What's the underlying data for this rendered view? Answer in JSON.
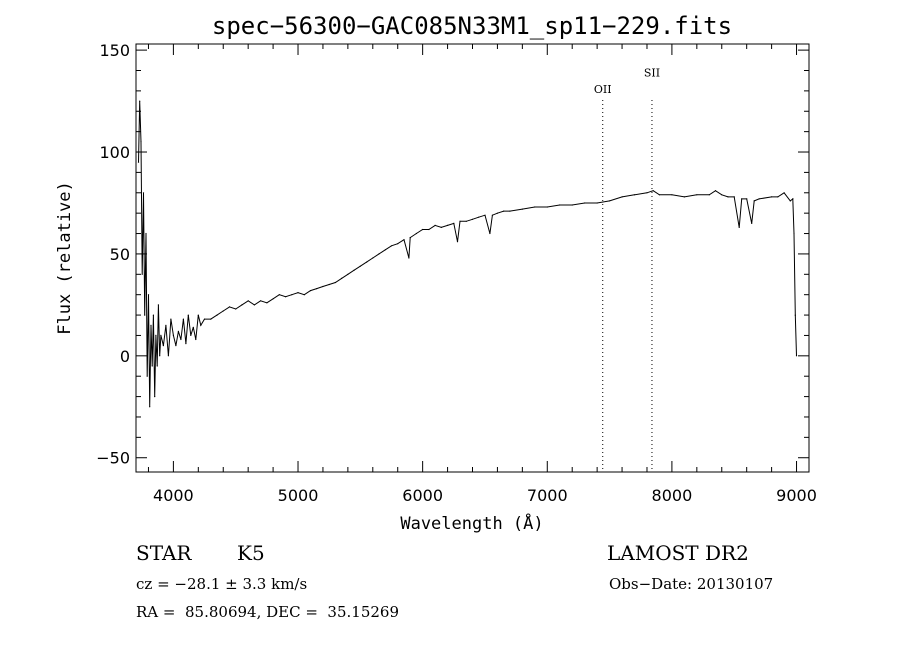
{
  "chart_data": {
    "type": "line",
    "title": "spec−56300−GAC085N33M1_sp11−229.fits",
    "xlabel": "Wavelength (Å)",
    "ylabel": "Flux (relative)",
    "xlim": [
      3700,
      9100
    ],
    "ylim": [
      -57,
      153
    ],
    "xticks": [
      4000,
      5000,
      6000,
      7000,
      8000,
      9000
    ],
    "yticks": [
      -50,
      0,
      50,
      100,
      150
    ],
    "ytick_labels": [
      "−50",
      "0",
      "50",
      "100",
      "150"
    ],
    "x_minor_step": 200,
    "y_minor_step": 10,
    "grid": false,
    "series": [
      {
        "x": [
          3720,
          3730,
          3740,
          3750,
          3760,
          3770,
          3780,
          3790,
          3800,
          3810,
          3820,
          3830,
          3840,
          3850,
          3860,
          3870,
          3880,
          3890,
          3900,
          3920,
          3940,
          3960,
          3980,
          4000,
          4020,
          4040,
          4060,
          4080,
          4100,
          4120,
          4140,
          4160,
          4180,
          4200,
          4220,
          4250,
          4300,
          4350,
          4400,
          4450,
          4500,
          4550,
          4600,
          4650,
          4700,
          4750,
          4800,
          4850,
          4900,
          4950,
          5000,
          5050,
          5100,
          5150,
          5200,
          5250,
          5300,
          5350,
          5400,
          5450,
          5500,
          5550,
          5600,
          5650,
          5700,
          5750,
          5800,
          5850,
          5890,
          5900,
          5950,
          6000,
          6050,
          6100,
          6150,
          6200,
          6250,
          6280,
          6300,
          6350,
          6400,
          6450,
          6500,
          6540,
          6560,
          6600,
          6650,
          6700,
          6800,
          6900,
          7000,
          7100,
          7200,
          7300,
          7400,
          7500,
          7600,
          7700,
          7800,
          7850,
          7900,
          8000,
          8100,
          8200,
          8300,
          8350,
          8400,
          8450,
          8500,
          8540,
          8560,
          8600,
          8640,
          8660,
          8700,
          8800,
          8850,
          8900,
          8950,
          8970,
          8980,
          8990,
          9000
        ],
        "values": [
          95,
          125,
          105,
          40,
          80,
          20,
          60,
          -10,
          30,
          -25,
          15,
          -5,
          20,
          -20,
          10,
          -5,
          25,
          0,
          10,
          5,
          15,
          0,
          18,
          10,
          5,
          12,
          8,
          18,
          6,
          20,
          10,
          14,
          8,
          20,
          15,
          18,
          18,
          20,
          22,
          24,
          23,
          25,
          27,
          25,
          27,
          26,
          28,
          30,
          29,
          30,
          31,
          30,
          32,
          33,
          34,
          35,
          36,
          38,
          40,
          42,
          44,
          46,
          48,
          50,
          52,
          54,
          55,
          57,
          48,
          58,
          60,
          62,
          62,
          64,
          63,
          64,
          65,
          56,
          66,
          66,
          67,
          68,
          69,
          60,
          69,
          70,
          71,
          71,
          72,
          73,
          73,
          74,
          74,
          75,
          75,
          76,
          78,
          79,
          80,
          81,
          79,
          79,
          78,
          79,
          79,
          81,
          79,
          78,
          78,
          63,
          77,
          77,
          65,
          76,
          77,
          78,
          78,
          80,
          76,
          77,
          60,
          20,
          0
        ]
      }
    ],
    "annotations": [
      {
        "label": "OII",
        "x": 7445,
        "text_y": 129
      },
      {
        "label": "SII",
        "x": 7840,
        "text_y": 137
      }
    ]
  },
  "info": {
    "object_type": "STAR",
    "spectral_class": "K5",
    "survey": "LAMOST DR2",
    "cz": "cz = −28.1 ± 3.3 km/s",
    "obs_date": "Obs−Date: 20130107",
    "coords": "RA =  85.80694, DEC =  35.15269"
  }
}
